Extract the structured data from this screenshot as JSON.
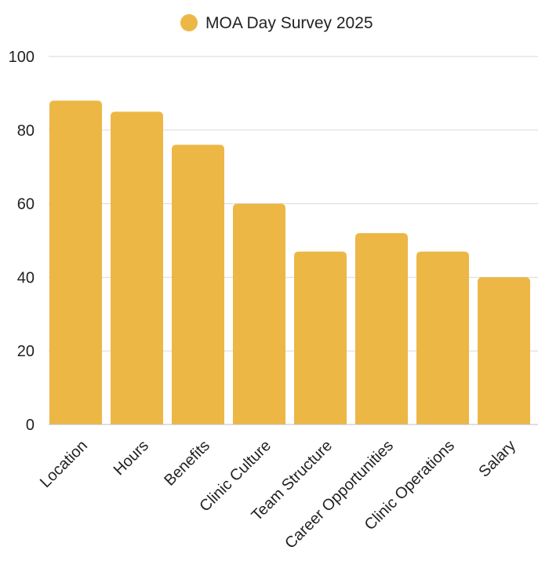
{
  "chart_data": {
    "type": "bar",
    "title": "",
    "xlabel": "",
    "ylabel": "",
    "categories": [
      "Location",
      "Hours",
      "Benefits",
      "Clinic Culture",
      "Team Structure",
      "Career Opportunities",
      "Clinic Operations",
      "Salary"
    ],
    "series": [
      {
        "name": "MOA Day Survey 2025",
        "color": "#ECB745",
        "values": [
          88,
          85,
          76,
          60,
          47,
          52,
          47,
          40
        ]
      }
    ],
    "ylim": [
      0,
      100
    ],
    "yticks": [
      0,
      20,
      40,
      60,
      80,
      100
    ],
    "grid": true,
    "legend_position": "top-center"
  }
}
